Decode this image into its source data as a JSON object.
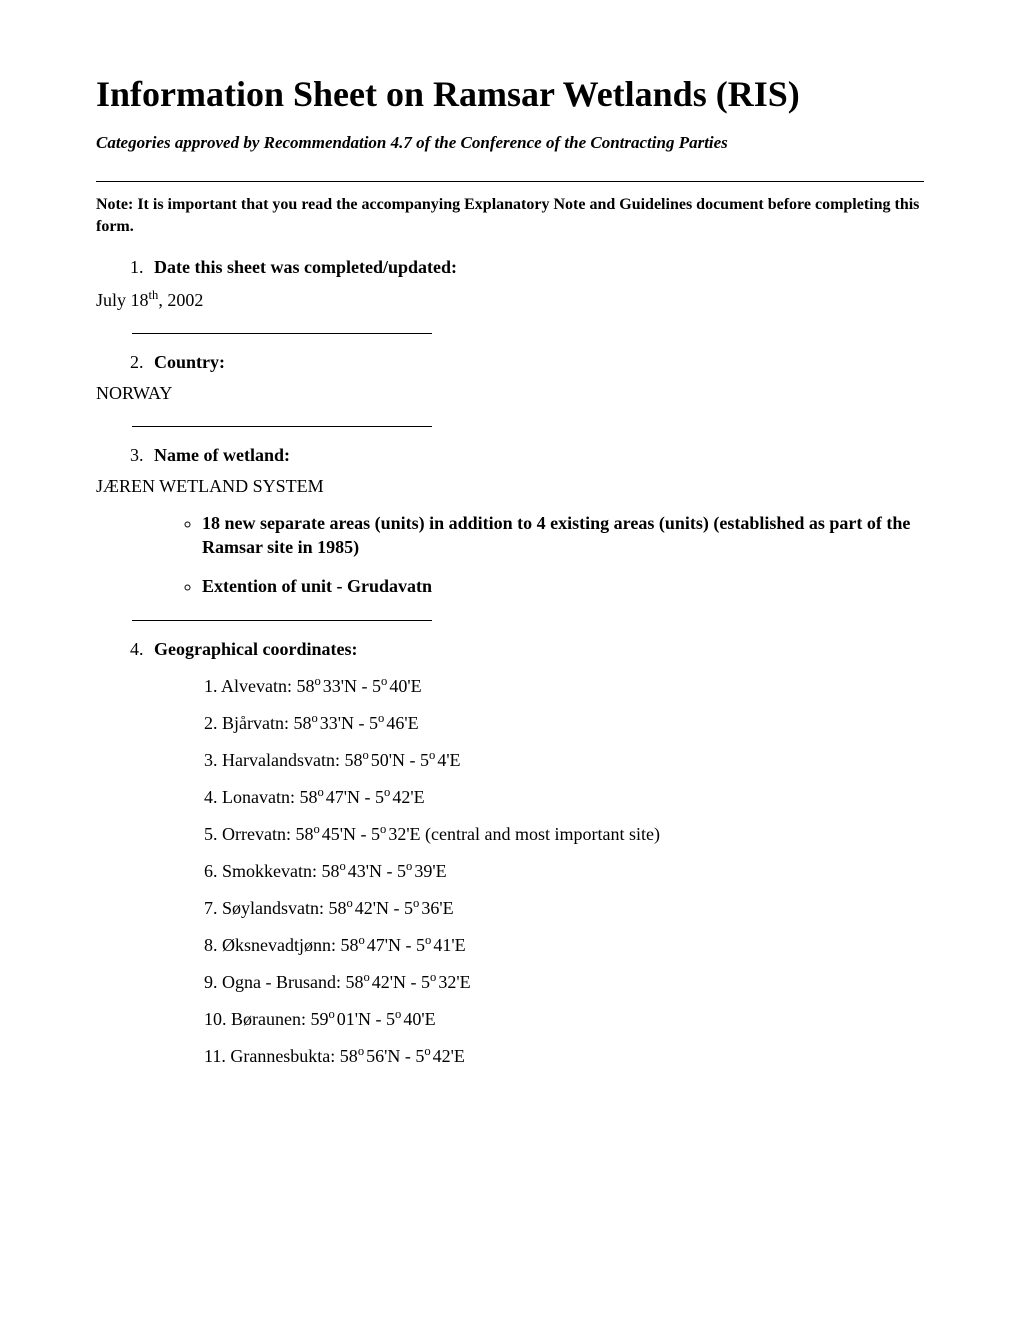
{
  "title": "Information Sheet on Ramsar Wetlands (RIS)",
  "subtitle": "Categories approved by Recommendation 4.7 of the Conference of the Contracting Parties",
  "note": "Note: It is important that you read the accompanying Explanatory Note and Guidelines document before completing this form.",
  "sections": {
    "s1": {
      "num": "1.",
      "label": "Date this sheet was completed/updated",
      "answer_prefix": "July 18",
      "answer_sup": "th",
      "answer_suffix": ", 2002"
    },
    "s2": {
      "num": "2.",
      "label": "Country",
      "answer": "NORWAY"
    },
    "s3": {
      "num": "3.",
      "label": "Name of wetland",
      "answer": "JÆREN WETLAND SYSTEM",
      "bullets": [
        "18 new separate areas (units) in addition to 4 existing areas (units) (established as part of the Ramsar site in 1985)",
        "Extention of unit - Grudavatn"
      ]
    },
    "s4": {
      "num": "4.",
      "label": "Geographical coordinates",
      "coords": [
        {
          "n": "1.",
          "name": "Alvevatn:",
          "lat_d": "58",
          "lat_m": "33'N",
          "lon_d": "5",
          "lon_m": "40'E",
          "extra": ""
        },
        {
          "n": "2.",
          "name": "Bjårvatn:",
          "lat_d": "58",
          "lat_m": "33'N",
          "lon_d": "5",
          "lon_m": "46'E",
          "extra": ""
        },
        {
          "n": "3.",
          "name": "Harvalandsvatn:",
          "lat_d": "58",
          "lat_m": "50'N",
          "lon_d": "5",
          "lon_m": "4'E",
          "extra": ""
        },
        {
          "n": "4.",
          "name": "Lonavatn:",
          "lat_d": "58",
          "lat_m": "47'N",
          "lon_d": "5",
          "lon_m": "42'E",
          "extra": ""
        },
        {
          "n": "5.",
          "name": "Orrevatn:",
          "lat_d": "58",
          "lat_m": "45'N",
          "lon_d": "5",
          "lon_m": "32'E",
          "extra": " (central and most important site)"
        },
        {
          "n": "6.",
          "name": "Smokkevatn:",
          "lat_d": "58",
          "lat_m": "43'N",
          "lon_d": "5",
          "lon_m": "39'E",
          "extra": ""
        },
        {
          "n": "7.",
          "name": "Søylandsvatn:",
          "lat_d": "58",
          "lat_m": "42'N",
          "lon_d": "5",
          "lon_m": "36'E",
          "extra": ""
        },
        {
          "n": "8.",
          "name": "Øksnevadtjønn:",
          "lat_d": "58",
          "lat_m": "47'N",
          "lon_d": "5",
          "lon_m": "41'E",
          "extra": ""
        },
        {
          "n": "9.",
          "name": "Ogna - Brusand:",
          "lat_d": "58",
          "lat_m": "42'N",
          "lon_d": "5",
          "lon_m": "32'E",
          "extra": ""
        },
        {
          "n": "10.",
          "name": "Børaunen:",
          "lat_d": "59",
          "lat_m": "01'N",
          "lon_d": "5",
          "lon_m": "40'E",
          "extra": ""
        },
        {
          "n": "11.",
          "name": "Grannesbukta:",
          "lat_d": "58",
          "lat_m": "56'N",
          "lon_d": "5",
          "lon_m": "42'E",
          "extra": ""
        }
      ]
    }
  }
}
